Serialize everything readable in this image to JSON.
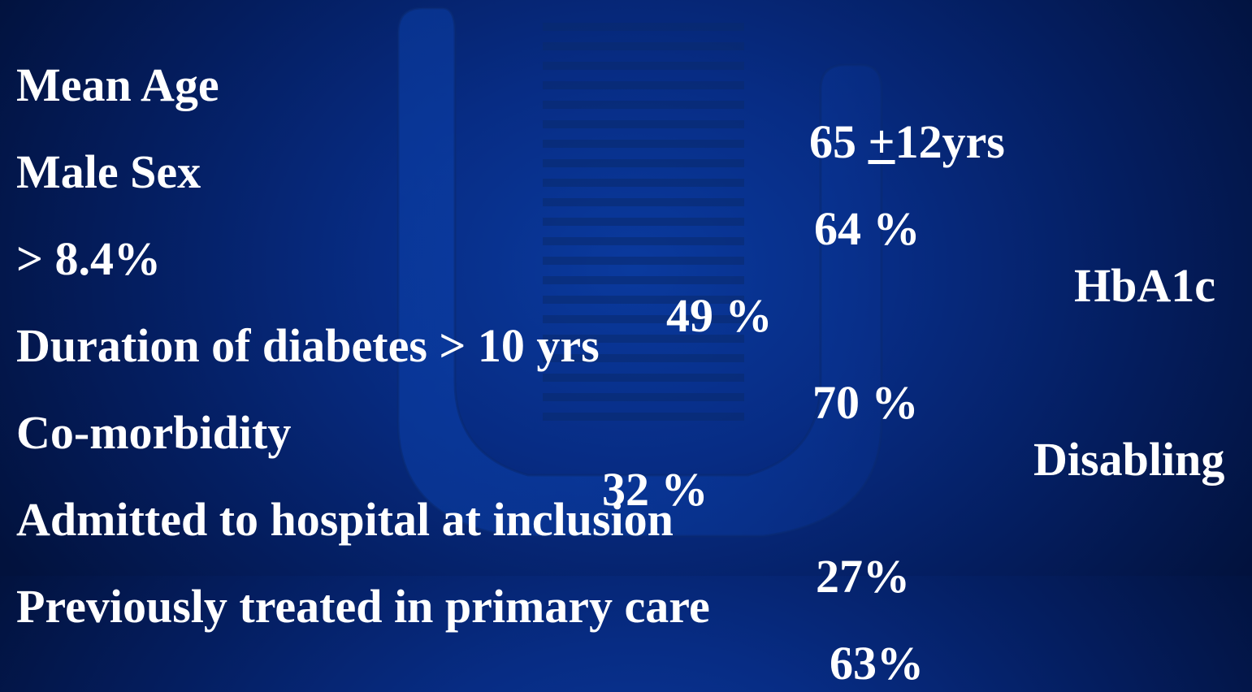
{
  "rows": [
    {
      "label": "Mean Age",
      "value_num": "65 ",
      "value_pm": "+",
      "value_rest": "12yrs"
    },
    {
      "label": "Male Sex",
      "value": "64 %",
      "extra": "HbA1c"
    },
    {
      "label": "> 8.4%",
      "value": "49 %"
    },
    {
      "label": "Duration of diabetes > 10 yrs",
      "value": "70 %",
      "extra": "Disabling"
    },
    {
      "label": "Co-morbidity",
      "value": "32 %"
    },
    {
      "label": "Admitted to hospital at inclusion",
      "value": "27%"
    },
    {
      "label": "Previously treated in primary care",
      "value": "63%"
    }
  ]
}
